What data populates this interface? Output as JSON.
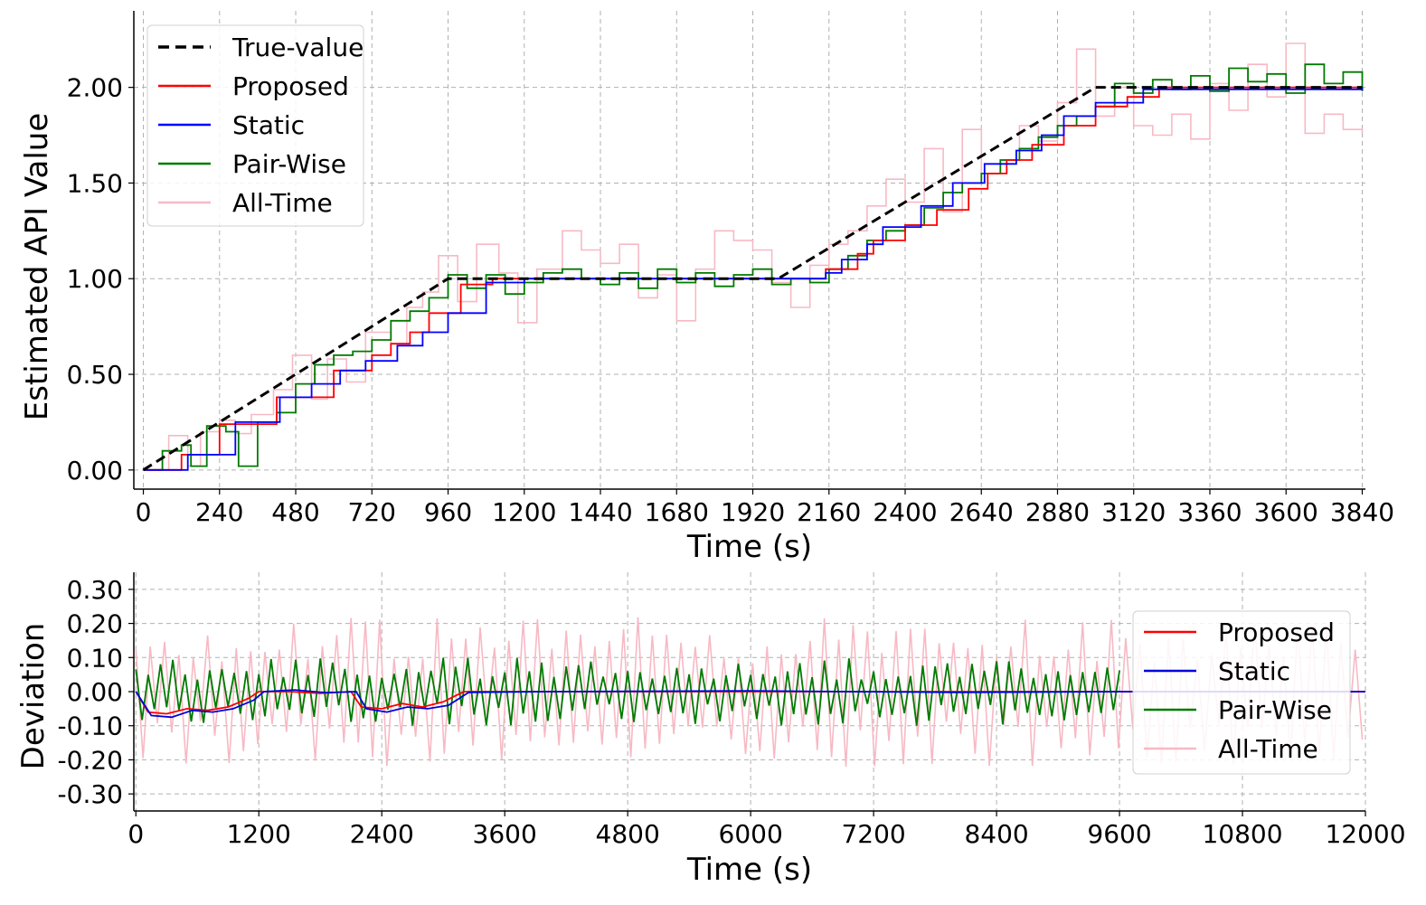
{
  "chart_data": [
    {
      "type": "line",
      "xlabel": "Time (s)",
      "ylabel": "Estimated API Value",
      "xlim": [
        -30,
        3850
      ],
      "ylim": [
        -0.1,
        2.4
      ],
      "xticks": [
        0,
        240,
        480,
        720,
        960,
        1200,
        1440,
        1680,
        1920,
        2160,
        2400,
        2640,
        2880,
        3120,
        3360,
        3600,
        3840
      ],
      "yticks": [
        0.0,
        0.5,
        1.0,
        1.5,
        2.0
      ],
      "ytick_labels": [
        "0.00",
        "0.50",
        "1.00",
        "1.50",
        "2.00"
      ],
      "grid": true,
      "legend_position": "upper-left",
      "series": [
        {
          "name": "True-value",
          "color": "#000000",
          "style": "dashed",
          "x": [
            0,
            960,
            2000,
            3000,
            3840
          ],
          "y": [
            0,
            1.0,
            1.0,
            2.0,
            2.0
          ]
        },
        {
          "name": "Proposed",
          "color": "#ff0000",
          "style": "step",
          "x": [
            0,
            120,
            240,
            300,
            420,
            480,
            600,
            720,
            780,
            840,
            900,
            1000,
            1100,
            1300,
            1500,
            1700,
            1900,
            2050,
            2150,
            2250,
            2300,
            2400,
            2500,
            2600,
            2660,
            2720,
            2800,
            2900,
            3000,
            3100,
            3200,
            3300,
            3500,
            3700,
            3840
          ],
          "y": [
            0,
            0.08,
            0.24,
            0.24,
            0.38,
            0.38,
            0.52,
            0.6,
            0.66,
            0.72,
            0.82,
            0.97,
            1.0,
            1.0,
            1.0,
            1.0,
            1.0,
            1.0,
            1.05,
            1.13,
            1.2,
            1.28,
            1.36,
            1.47,
            1.55,
            1.62,
            1.7,
            1.8,
            1.9,
            1.95,
            2.0,
            2.0,
            2.0,
            2.0,
            2.0
          ]
        },
        {
          "name": "Static",
          "color": "#0000ff",
          "style": "step",
          "x": [
            0,
            140,
            290,
            430,
            530,
            620,
            700,
            800,
            880,
            960,
            1080,
            1200,
            1500,
            1800,
            2100,
            2150,
            2200,
            2280,
            2330,
            2450,
            2550,
            2650,
            2750,
            2830,
            2900,
            3000,
            3150,
            3840
          ],
          "y": [
            0,
            0.08,
            0.25,
            0.38,
            0.45,
            0.52,
            0.57,
            0.65,
            0.72,
            0.82,
            0.98,
            1.0,
            1.0,
            1.0,
            1.0,
            1.03,
            1.1,
            1.18,
            1.27,
            1.38,
            1.5,
            1.6,
            1.67,
            1.75,
            1.85,
            1.92,
            1.99,
            2.0
          ]
        },
        {
          "name": "Pair-Wise",
          "color": "#007a00",
          "style": "step",
          "x": [
            0,
            60,
            120,
            150,
            200,
            260,
            300,
            360,
            420,
            480,
            540,
            600,
            660,
            720,
            780,
            840,
            900,
            960,
            1020,
            1080,
            1140,
            1200,
            1260,
            1320,
            1380,
            1440,
            1500,
            1560,
            1620,
            1680,
            1740,
            1800,
            1860,
            1920,
            1980,
            2040,
            2100,
            2160,
            2220,
            2280,
            2340,
            2400,
            2460,
            2520,
            2580,
            2640,
            2700,
            2760,
            2820,
            2880,
            2940,
            3000,
            3060,
            3120,
            3180,
            3240,
            3300,
            3360,
            3420,
            3480,
            3540,
            3600,
            3660,
            3720,
            3780,
            3840
          ],
          "y": [
            0,
            0.1,
            0.13,
            0.02,
            0.23,
            0.2,
            0.02,
            0.25,
            0.3,
            0.45,
            0.55,
            0.6,
            0.62,
            0.68,
            0.78,
            0.83,
            0.9,
            1.02,
            0.95,
            1.02,
            0.92,
            0.98,
            1.03,
            1.05,
            1.0,
            0.97,
            1.03,
            0.95,
            1.05,
            0.98,
            1.03,
            0.96,
            1.02,
            1.05,
            0.97,
            1.0,
            0.98,
            1.05,
            1.12,
            1.2,
            1.25,
            1.28,
            1.37,
            1.45,
            1.5,
            1.55,
            1.62,
            1.68,
            1.74,
            1.8,
            1.85,
            1.9,
            2.02,
            1.97,
            2.04,
            1.99,
            2.06,
            1.98,
            2.1,
            2.03,
            2.07,
            1.97,
            2.12,
            2.02,
            2.08,
            1.98
          ]
        },
        {
          "name": "All-Time",
          "color": "#f7b9c4",
          "style": "step",
          "x": [
            0,
            80,
            140,
            180,
            240,
            290,
            340,
            410,
            470,
            530,
            580,
            640,
            700,
            780,
            830,
            880,
            930,
            990,
            1050,
            1120,
            1180,
            1240,
            1320,
            1380,
            1440,
            1500,
            1560,
            1620,
            1680,
            1740,
            1800,
            1860,
            1920,
            1980,
            2040,
            2100,
            2160,
            2220,
            2280,
            2340,
            2400,
            2460,
            2520,
            2580,
            2640,
            2700,
            2760,
            2820,
            2880,
            2940,
            3000,
            3060,
            3120,
            3180,
            3240,
            3300,
            3360,
            3420,
            3480,
            3540,
            3600,
            3660,
            3720,
            3780,
            3840
          ],
          "y": [
            0.0,
            0.18,
            0.02,
            0.2,
            0.26,
            0.19,
            0.29,
            0.42,
            0.6,
            0.37,
            0.58,
            0.46,
            0.72,
            0.66,
            0.85,
            0.93,
            1.12,
            0.88,
            1.18,
            1.03,
            0.77,
            1.05,
            1.25,
            1.15,
            1.08,
            1.18,
            0.9,
            1.02,
            0.78,
            1.05,
            1.25,
            1.2,
            1.15,
            0.98,
            0.85,
            1.07,
            1.18,
            1.25,
            1.38,
            1.52,
            1.4,
            1.68,
            1.35,
            1.78,
            1.55,
            1.62,
            1.8,
            1.72,
            1.92,
            2.2,
            1.85,
            2.0,
            1.8,
            1.75,
            1.86,
            1.73,
            2.02,
            1.88,
            2.12,
            1.95,
            2.23,
            1.76,
            1.86,
            1.78,
            1.76
          ]
        }
      ]
    },
    {
      "type": "line",
      "xlabel": "Time (s)",
      "ylabel": "Deviation",
      "xlim": [
        -20,
        12000
      ],
      "ylim": [
        -0.35,
        0.35
      ],
      "xticks": [
        0,
        1200,
        2400,
        3600,
        4800,
        6000,
        7200,
        8400,
        9600,
        10800,
        12000
      ],
      "yticks": [
        -0.3,
        -0.2,
        -0.1,
        0.0,
        0.1,
        0.2,
        0.3
      ],
      "ytick_labels": [
        "-0.30",
        "-0.20",
        "-0.10",
        "0.00",
        "0.10",
        "0.20",
        "0.30"
      ],
      "grid": true,
      "legend_position": "center-right",
      "series": [
        {
          "name": "Proposed",
          "color": "#ff0000",
          "x": [
            0,
            120,
            300,
            500,
            700,
            900,
            1100,
            1200,
            1500,
            1800,
            2100,
            2200,
            2400,
            2600,
            2800,
            3000,
            3200,
            4000,
            6000,
            8000,
            9600,
            12000
          ],
          "y": [
            0,
            -0.06,
            -0.065,
            -0.05,
            -0.055,
            -0.045,
            -0.02,
            0,
            0.0,
            -0.005,
            0.0,
            -0.045,
            -0.05,
            -0.035,
            -0.045,
            -0.03,
            0.0,
            0.0,
            0.0,
            0.0,
            0.0,
            0.0
          ]
        },
        {
          "name": "Static",
          "color": "#0000dd",
          "x": [
            0,
            150,
            350,
            550,
            750,
            950,
            1150,
            1250,
            1550,
            1850,
            2150,
            2250,
            2450,
            2650,
            2850,
            3050,
            3250,
            4000,
            6000,
            8000,
            9600,
            12000
          ],
          "y": [
            0,
            -0.07,
            -0.075,
            -0.055,
            -0.06,
            -0.05,
            -0.025,
            0,
            0.005,
            -0.003,
            0.0,
            -0.05,
            -0.06,
            -0.045,
            -0.05,
            -0.04,
            -0.002,
            0.0,
            0.002,
            -0.002,
            0.0,
            0.0
          ]
        },
        {
          "name": "Pair-Wise",
          "color": "#007a00",
          "x_start": 0,
          "x_end": 9600,
          "step": 60,
          "amplitude": 0.1
        },
        {
          "name": "All-Time",
          "color": "#f7b9c4",
          "x_start": 0,
          "x_end": 12000,
          "step": 70,
          "amplitude": 0.22
        }
      ]
    }
  ]
}
